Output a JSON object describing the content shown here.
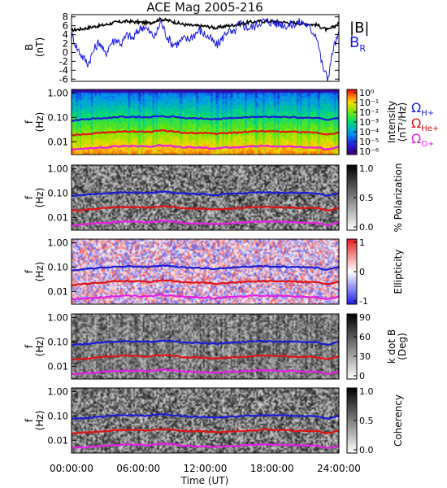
{
  "chart_data": [
    {
      "type": "line",
      "title": "ACE Mag 2005-216",
      "ylabel": "B",
      "yunit": "(nT)",
      "ylim": [
        -6.5,
        8.5
      ],
      "yticks": [
        "8",
        "6",
        "4",
        "2",
        "0",
        "-2",
        "-4",
        "-6"
      ],
      "series": [
        {
          "name": "|B|",
          "color": "#000000",
          "x": [
            0,
            1,
            2,
            3,
            4,
            5,
            6,
            7,
            8,
            9,
            10,
            11,
            12,
            13,
            14,
            15,
            16,
            17,
            18,
            19,
            20,
            21,
            22,
            23,
            24
          ],
          "values": [
            5.0,
            5.3,
            5.8,
            6.2,
            6.8,
            7.0,
            6.8,
            6.6,
            7.5,
            7.0,
            6.3,
            6.0,
            5.9,
            5.5,
            6.0,
            6.3,
            6.8,
            7.0,
            7.0,
            6.8,
            6.6,
            6.4,
            6.2,
            5.0,
            6.5
          ]
        },
        {
          "name": "B",
          "subscript": "R",
          "color": "#1919e6",
          "x": [
            0,
            0.5,
            1,
            1.5,
            2,
            2.5,
            3,
            3.5,
            4,
            4.5,
            5,
            5.5,
            6,
            6.5,
            7,
            7.5,
            8,
            8.5,
            9,
            9.5,
            10,
            10.5,
            11,
            11.5,
            12,
            12.5,
            13,
            13.5,
            14,
            14.5,
            15,
            15.5,
            16,
            16.5,
            17,
            17.5,
            18,
            18.5,
            19,
            19.5,
            20,
            20.5,
            21,
            21.5,
            22,
            22.5,
            23,
            23.5,
            24
          ],
          "values": [
            4.0,
            1.0,
            -1.0,
            -2.5,
            0.5,
            2.5,
            -0.5,
            2.0,
            3.0,
            2.0,
            4.0,
            3.0,
            5.0,
            6.0,
            4.5,
            3.5,
            7.0,
            4.0,
            2.0,
            2.0,
            3.0,
            3.0,
            4.0,
            5.0,
            4.0,
            3.0,
            1.5,
            3.0,
            5.0,
            4.0,
            6.5,
            6.0,
            5.5,
            6.0,
            7.0,
            7.0,
            6.8,
            6.5,
            6.3,
            6.0,
            6.5,
            6.8,
            6.5,
            5.0,
            4.0,
            -3.0,
            -6.0,
            1.0,
            4.0
          ]
        }
      ]
    },
    {
      "type": "heatmap",
      "ylabel": "f",
      "yunit": "(Hz)",
      "yticks": [
        "1.00",
        "0.10",
        "0.01"
      ],
      "colorbar": {
        "label": "Intensity",
        "unit": "(nT²/Hz)",
        "ticks": [
          "10⁰",
          "10⁻¹",
          "10⁻²",
          "10⁻³",
          "10⁻⁴",
          "10⁻⁵",
          "10⁻⁶"
        ],
        "range": [
          -6,
          0
        ],
        "colormap": "rainbow"
      }
    },
    {
      "type": "heatmap",
      "ylabel": "f",
      "yunit": "(Hz)",
      "yticks": [
        "1.00",
        "0.10",
        "0.01"
      ],
      "colorbar": {
        "label": "% Polarization",
        "unit": "",
        "ticks": [
          "1.0",
          "0.5",
          "0.0"
        ],
        "range": [
          0,
          1
        ],
        "colormap": "gray"
      }
    },
    {
      "type": "heatmap",
      "ylabel": "f",
      "yunit": "(Hz)",
      "yticks": [
        "1.00",
        "0.10",
        "0.01"
      ],
      "colorbar": {
        "label": "Ellipticity",
        "unit": "",
        "ticks": [
          "1",
          "0",
          "-1"
        ],
        "range": [
          -1,
          1
        ],
        "colormap": "bwr"
      }
    },
    {
      "type": "heatmap",
      "ylabel": "f",
      "yunit": "(Hz)",
      "yticks": [
        "1.00",
        "0.10",
        "0.01"
      ],
      "colorbar": {
        "label": "k dot B",
        "unit": "(Deg)",
        "ticks": [
          "90",
          "60",
          "30",
          "0"
        ],
        "range": [
          0,
          90
        ],
        "colormap": "gray"
      }
    },
    {
      "type": "heatmap",
      "ylabel": "f",
      "yunit": "(Hz)",
      "yticks": [
        "1.00",
        "0.10",
        "0.01"
      ],
      "xlabel": "Time (UT)",
      "xticks": [
        "00:00:00",
        "06:00:00",
        "12:00:00",
        "18:00:00",
        "24:00:00"
      ],
      "colorbar": {
        "label": "Coherency",
        "unit": "",
        "ticks": [
          "1.0",
          "0.5",
          "0.0"
        ],
        "range": [
          0,
          1
        ],
        "colormap": "gray"
      }
    }
  ],
  "gyrofrequencies": {
    "x": [
      0,
      1,
      2,
      3,
      4,
      5,
      6,
      7,
      8,
      9,
      10,
      11,
      12,
      13,
      14,
      15,
      16,
      17,
      18,
      19,
      20,
      21,
      22,
      23,
      24
    ],
    "H+": [
      0.076,
      0.081,
      0.089,
      0.095,
      0.104,
      0.107,
      0.104,
      0.101,
      0.115,
      0.107,
      0.096,
      0.092,
      0.09,
      0.084,
      0.092,
      0.096,
      0.104,
      0.107,
      0.107,
      0.104,
      0.101,
      0.098,
      0.095,
      0.076,
      0.099
    ],
    "He+": [
      0.019,
      0.02,
      0.022,
      0.024,
      0.026,
      0.027,
      0.026,
      0.025,
      0.029,
      0.027,
      0.024,
      0.023,
      0.0225,
      0.021,
      0.023,
      0.024,
      0.026,
      0.027,
      0.027,
      0.026,
      0.025,
      0.0245,
      0.024,
      0.019,
      0.025
    ],
    "O+": [
      0.0048,
      0.0051,
      0.0055,
      0.0059,
      0.0065,
      0.0067,
      0.0065,
      0.0063,
      0.0072,
      0.0067,
      0.006,
      0.0058,
      0.0056,
      0.0053,
      0.0058,
      0.006,
      0.0065,
      0.0067,
      0.0067,
      0.0065,
      0.0063,
      0.0061,
      0.0059,
      0.0048,
      0.0062
    ]
  },
  "gyro_legend": [
    {
      "symbol": "Ω",
      "sub": "H+",
      "color": "#1c1cd6"
    },
    {
      "symbol": "Ω",
      "sub": "He+",
      "color": "#e01414"
    },
    {
      "symbol": "Ω",
      "sub": "O+",
      "color": "#e61ee6"
    }
  ],
  "x_range": [
    0,
    24
  ],
  "f_range": [
    0.003,
    1.4
  ]
}
